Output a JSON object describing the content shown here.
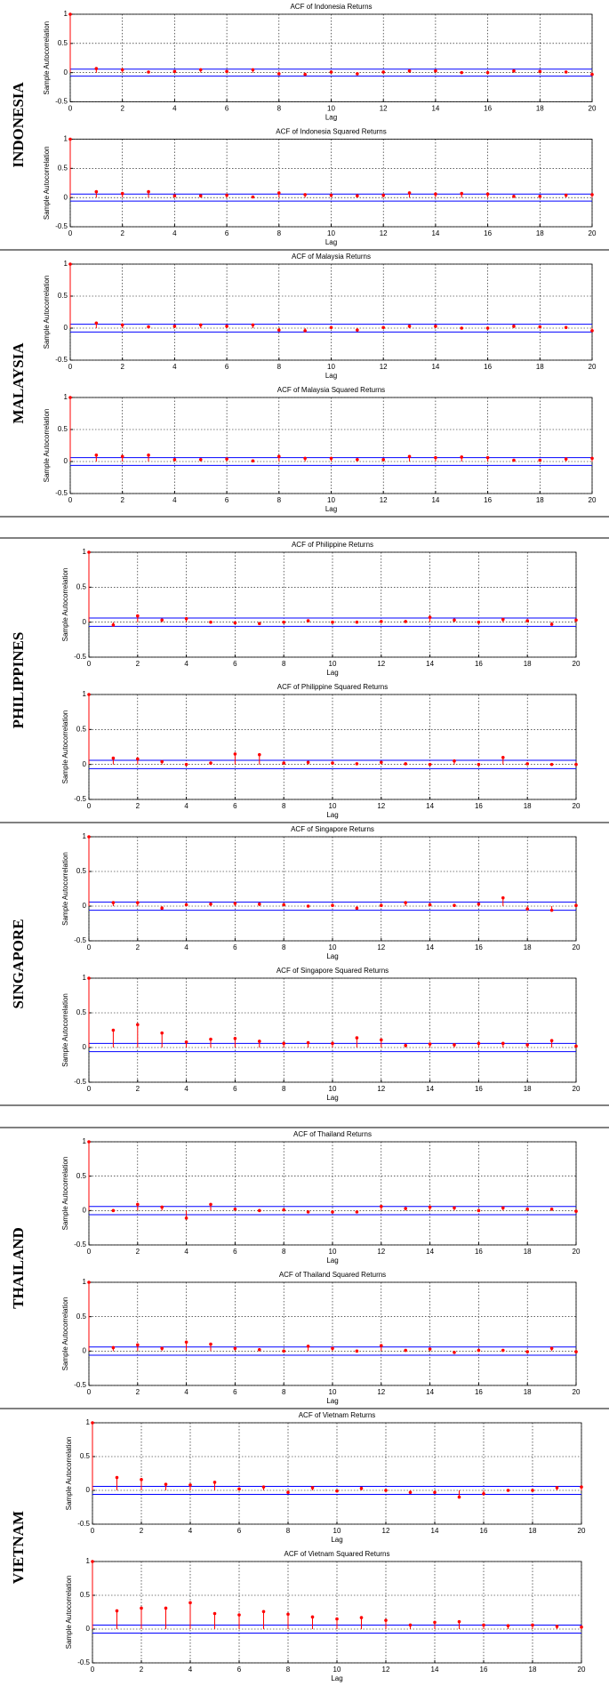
{
  "countries": [
    "INDONESIA",
    "MALAYSIA",
    "PHILIPPINES",
    "SINGAPORE",
    "THAILAND",
    "VIETNAM"
  ],
  "chart_data": [
    {
      "type": "stem",
      "title": "ACF of Indonesia Returns",
      "xlabel": "Lag",
      "ylabel": "Sample Autocorrelation",
      "x": [
        0,
        1,
        2,
        3,
        4,
        5,
        6,
        7,
        8,
        9,
        10,
        11,
        12,
        13,
        14,
        15,
        16,
        17,
        18,
        19,
        20
      ],
      "values": [
        1,
        0.07,
        0.05,
        0.01,
        0.02,
        0.05,
        0.02,
        0.05,
        -0.02,
        -0.03,
        0.01,
        -0.02,
        0.01,
        0.03,
        0.03,
        0,
        0,
        0.03,
        0.02,
        0.01,
        -0.03
      ],
      "xlim": [
        0,
        20
      ],
      "ylim": [
        -0.5,
        1
      ],
      "xticks": [
        0,
        2,
        4,
        6,
        8,
        10,
        12,
        14,
        16,
        18,
        20
      ],
      "yticks": [
        -0.5,
        0,
        0.5,
        1
      ],
      "bounds": [
        -0.06,
        0.06
      ],
      "grid": true,
      "color": "#ff0000",
      "bound_color": "#0000ff"
    },
    {
      "type": "stem",
      "title": "ACF of Indonesia Squared Returns",
      "xlabel": "Lag",
      "ylabel": "Sample Autocorrelation",
      "x": [
        0,
        1,
        2,
        3,
        4,
        5,
        6,
        7,
        8,
        9,
        10,
        11,
        12,
        13,
        14,
        15,
        16,
        17,
        18,
        19,
        20
      ],
      "values": [
        1,
        0.1,
        0.07,
        0.1,
        0.03,
        0.03,
        0.04,
        0.01,
        0.08,
        0.05,
        0.04,
        0.03,
        0.04,
        0.08,
        0.06,
        0.07,
        0.06,
        0.02,
        0.02,
        0.04,
        0.05
      ],
      "xlim": [
        0,
        20
      ],
      "ylim": [
        -0.5,
        1
      ],
      "xticks": [
        0,
        2,
        4,
        6,
        8,
        10,
        12,
        14,
        16,
        18,
        20
      ],
      "yticks": [
        -0.5,
        0,
        0.5,
        1
      ],
      "bounds": [
        -0.06,
        0.06
      ],
      "grid": true,
      "color": "#ff0000",
      "bound_color": "#0000ff"
    },
    {
      "type": "stem",
      "title": "ACF of Malaysia Returns",
      "xlabel": "Lag",
      "ylabel": "Sample Autocorrelation",
      "x": [
        0,
        1,
        2,
        3,
        4,
        5,
        6,
        7,
        8,
        9,
        10,
        11,
        12,
        13,
        14,
        15,
        16,
        17,
        18,
        19,
        20
      ],
      "values": [
        1,
        0.08,
        0.05,
        0.02,
        0.03,
        0.05,
        0.03,
        0.05,
        -0.03,
        -0.04,
        0.01,
        -0.03,
        0.01,
        0.03,
        0.03,
        0,
        0,
        0.03,
        0.02,
        0.01,
        -0.04
      ],
      "xlim": [
        0,
        20
      ],
      "ylim": [
        -0.5,
        1
      ],
      "xticks": [
        0,
        2,
        4,
        6,
        8,
        10,
        12,
        14,
        16,
        18,
        20
      ],
      "yticks": [
        -0.5,
        0,
        0.5,
        1
      ],
      "bounds": [
        -0.06,
        0.06
      ],
      "grid": true,
      "color": "#ff0000",
      "bound_color": "#0000ff"
    },
    {
      "type": "stem",
      "title": "ACF of Malaysia Squared Returns",
      "xlabel": "Lag",
      "ylabel": "Sample Autocorrelation",
      "x": [
        0,
        1,
        2,
        3,
        4,
        5,
        6,
        7,
        8,
        9,
        10,
        11,
        12,
        13,
        14,
        15,
        16,
        17,
        18,
        19,
        20
      ],
      "values": [
        1,
        0.1,
        0.08,
        0.1,
        0.03,
        0.03,
        0.04,
        0.01,
        0.08,
        0.05,
        0.05,
        0.03,
        0.03,
        0.08,
        0.06,
        0.07,
        0.06,
        0.02,
        0.02,
        0.04,
        0.05
      ],
      "xlim": [
        0,
        20
      ],
      "ylim": [
        -0.5,
        1
      ],
      "xticks": [
        0,
        2,
        4,
        6,
        8,
        10,
        12,
        14,
        16,
        18,
        20
      ],
      "yticks": [
        -0.5,
        0,
        0.5,
        1
      ],
      "bounds": [
        -0.06,
        0.06
      ],
      "grid": true,
      "color": "#ff0000",
      "bound_color": "#0000ff"
    },
    {
      "type": "stem",
      "title": "ACF of Philippine Returns",
      "xlabel": "Lag",
      "ylabel": "Sample Autocorrelation",
      "x": [
        0,
        1,
        2,
        3,
        4,
        5,
        6,
        7,
        8,
        9,
        10,
        11,
        12,
        13,
        14,
        15,
        16,
        17,
        18,
        19,
        20
      ],
      "values": [
        1,
        -0.04,
        0.09,
        0.03,
        0.05,
        0,
        -0.01,
        -0.02,
        0,
        0.02,
        0,
        0,
        0.01,
        0.01,
        0.07,
        0.03,
        0,
        0.04,
        0.02,
        -0.03,
        0.03
      ],
      "xlim": [
        0,
        20
      ],
      "ylim": [
        -0.5,
        1
      ],
      "xticks": [
        0,
        2,
        4,
        6,
        8,
        10,
        12,
        14,
        16,
        18,
        20
      ],
      "yticks": [
        -0.5,
        0,
        0.5,
        1
      ],
      "bounds": [
        -0.06,
        0.06
      ],
      "grid": true,
      "color": "#ff0000",
      "bound_color": "#0000ff"
    },
    {
      "type": "stem",
      "title": "ACF of Philippine Squared Returns",
      "xlabel": "Lag",
      "ylabel": "Sample Autocorrelation",
      "x": [
        0,
        1,
        2,
        3,
        4,
        5,
        6,
        7,
        8,
        9,
        10,
        11,
        12,
        13,
        14,
        15,
        16,
        17,
        18,
        19,
        20
      ],
      "values": [
        1,
        0.09,
        0.08,
        0.04,
        0,
        0.02,
        0.15,
        0.14,
        0.02,
        0.03,
        0.02,
        0.01,
        0.03,
        0.01,
        0,
        0.05,
        0,
        0.1,
        0.01,
        0,
        0
      ],
      "xlim": [
        0,
        20
      ],
      "ylim": [
        -0.5,
        1
      ],
      "xticks": [
        0,
        2,
        4,
        6,
        8,
        10,
        12,
        14,
        16,
        18,
        20
      ],
      "yticks": [
        -0.5,
        0,
        0.5,
        1
      ],
      "bounds": [
        -0.06,
        0.06
      ],
      "grid": true,
      "color": "#ff0000",
      "bound_color": "#0000ff"
    },
    {
      "type": "stem",
      "title": "ACF of Singapore Returns",
      "xlabel": "Lag",
      "ylabel": "Sample Autocorrelation",
      "x": [
        0,
        1,
        2,
        3,
        4,
        5,
        6,
        7,
        8,
        9,
        10,
        11,
        12,
        13,
        14,
        15,
        16,
        17,
        18,
        19,
        20
      ],
      "values": [
        1,
        0.05,
        0.05,
        -0.03,
        0.02,
        0.03,
        0.04,
        0.03,
        0.02,
        0,
        0.01,
        -0.03,
        0.01,
        0.05,
        0.02,
        0.01,
        0.03,
        0.12,
        -0.04,
        -0.06,
        0.01
      ],
      "xlim": [
        0,
        20
      ],
      "ylim": [
        -0.5,
        1
      ],
      "xticks": [
        0,
        2,
        4,
        6,
        8,
        10,
        12,
        14,
        16,
        18,
        20
      ],
      "yticks": [
        -0.5,
        0,
        0.5,
        1
      ],
      "bounds": [
        -0.06,
        0.06
      ],
      "grid": true,
      "color": "#ff0000",
      "bound_color": "#0000ff"
    },
    {
      "type": "stem",
      "title": "ACF of Singapore Squared Returns",
      "xlabel": "Lag",
      "ylabel": "Sample Autocorrelation",
      "x": [
        0,
        1,
        2,
        3,
        4,
        5,
        6,
        7,
        8,
        9,
        10,
        11,
        12,
        13,
        14,
        15,
        16,
        17,
        18,
        19,
        20
      ],
      "values": [
        1,
        0.25,
        0.33,
        0.21,
        0.08,
        0.12,
        0.13,
        0.09,
        0.06,
        0.07,
        0.06,
        0.14,
        0.11,
        0.03,
        0.05,
        0.04,
        0.06,
        0.06,
        0.04,
        0.1,
        0.02
      ],
      "xlim": [
        0,
        20
      ],
      "ylim": [
        -0.5,
        1
      ],
      "xticks": [
        0,
        2,
        4,
        6,
        8,
        10,
        12,
        14,
        16,
        18,
        20
      ],
      "yticks": [
        -0.5,
        0,
        0.5,
        1
      ],
      "bounds": [
        -0.06,
        0.06
      ],
      "grid": true,
      "color": "#ff0000",
      "bound_color": "#0000ff"
    },
    {
      "type": "stem",
      "title": "ACF of Thailand Returns",
      "xlabel": "Lag",
      "ylabel": "Sample Autocorrelation",
      "x": [
        0,
        1,
        2,
        3,
        4,
        5,
        6,
        7,
        8,
        9,
        10,
        11,
        12,
        13,
        14,
        15,
        16,
        17,
        18,
        19,
        20
      ],
      "values": [
        1,
        0,
        0.09,
        0.05,
        -0.11,
        0.09,
        0.02,
        0,
        0.01,
        -0.02,
        -0.02,
        -0.02,
        0.06,
        0.03,
        0.05,
        0.04,
        0,
        0.04,
        0.02,
        0.02,
        -0.01
      ],
      "xlim": [
        0,
        20
      ],
      "ylim": [
        -0.5,
        1
      ],
      "xticks": [
        0,
        2,
        4,
        6,
        8,
        10,
        12,
        14,
        16,
        18,
        20
      ],
      "yticks": [
        -0.5,
        0,
        0.5,
        1
      ],
      "bounds": [
        -0.06,
        0.06
      ],
      "grid": true,
      "color": "#ff0000",
      "bound_color": "#0000ff"
    },
    {
      "type": "stem",
      "title": "ACF of Thailand Squared Returns",
      "xlabel": "Lag",
      "ylabel": "Sample Autocorrelation",
      "x": [
        0,
        1,
        2,
        3,
        4,
        5,
        6,
        7,
        8,
        9,
        10,
        11,
        12,
        13,
        14,
        15,
        16,
        17,
        18,
        19,
        20
      ],
      "values": [
        1,
        0.05,
        0.09,
        0.04,
        0.13,
        0.1,
        0.04,
        0.02,
        0,
        0.07,
        0.04,
        0,
        0.08,
        0.01,
        0.03,
        -0.02,
        0.01,
        0.01,
        -0.01,
        0.04,
        -0.01
      ],
      "xlim": [
        0,
        20
      ],
      "ylim": [
        -0.5,
        1
      ],
      "xticks": [
        0,
        2,
        4,
        6,
        8,
        10,
        12,
        14,
        16,
        18,
        20
      ],
      "yticks": [
        -0.5,
        0,
        0.5,
        1
      ],
      "bounds": [
        -0.06,
        0.06
      ],
      "grid": true,
      "color": "#ff0000",
      "bound_color": "#0000ff"
    },
    {
      "type": "stem",
      "title": "ACF of Vietnam Returns",
      "xlabel": "Lag",
      "ylabel": "Sample Autocorrelation",
      "x": [
        0,
        1,
        2,
        3,
        4,
        5,
        6,
        7,
        8,
        9,
        10,
        11,
        12,
        13,
        14,
        15,
        16,
        17,
        18,
        19,
        20
      ],
      "values": [
        1,
        0.19,
        0.16,
        0.09,
        0.08,
        0.12,
        0.02,
        0.05,
        -0.03,
        0.04,
        -0.01,
        0.03,
        0,
        -0.03,
        -0.03,
        -0.1,
        -0.05,
        0,
        0,
        0.04,
        0.05
      ],
      "xlim": [
        0,
        20
      ],
      "ylim": [
        -0.5,
        1
      ],
      "xticks": [
        0,
        2,
        4,
        6,
        8,
        10,
        12,
        14,
        16,
        18,
        20
      ],
      "yticks": [
        -0.5,
        0,
        0.5,
        1
      ],
      "bounds": [
        -0.06,
        0.06
      ],
      "grid": true,
      "color": "#ff0000",
      "bound_color": "#0000ff"
    },
    {
      "type": "stem",
      "title": "ACF of Vietnam Squared Returns",
      "xlabel": "Lag",
      "ylabel": "Sample Autocorrelation",
      "x": [
        0,
        1,
        2,
        3,
        4,
        5,
        6,
        7,
        8,
        9,
        10,
        11,
        12,
        13,
        14,
        15,
        16,
        17,
        18,
        19,
        20
      ],
      "values": [
        1,
        0.27,
        0.31,
        0.31,
        0.39,
        0.23,
        0.21,
        0.26,
        0.22,
        0.18,
        0.15,
        0.17,
        0.13,
        0.06,
        0.1,
        0.11,
        0.06,
        0.05,
        0.06,
        0.04,
        0.03
      ],
      "xlim": [
        0,
        20
      ],
      "ylim": [
        -0.5,
        1
      ],
      "xticks": [
        0,
        2,
        4,
        6,
        8,
        10,
        12,
        14,
        16,
        18,
        20
      ],
      "yticks": [
        -0.5,
        0,
        0.5,
        1
      ],
      "bounds": [
        -0.06,
        0.06
      ],
      "grid": true,
      "color": "#ff0000",
      "bound_color": "#0000ff"
    }
  ]
}
